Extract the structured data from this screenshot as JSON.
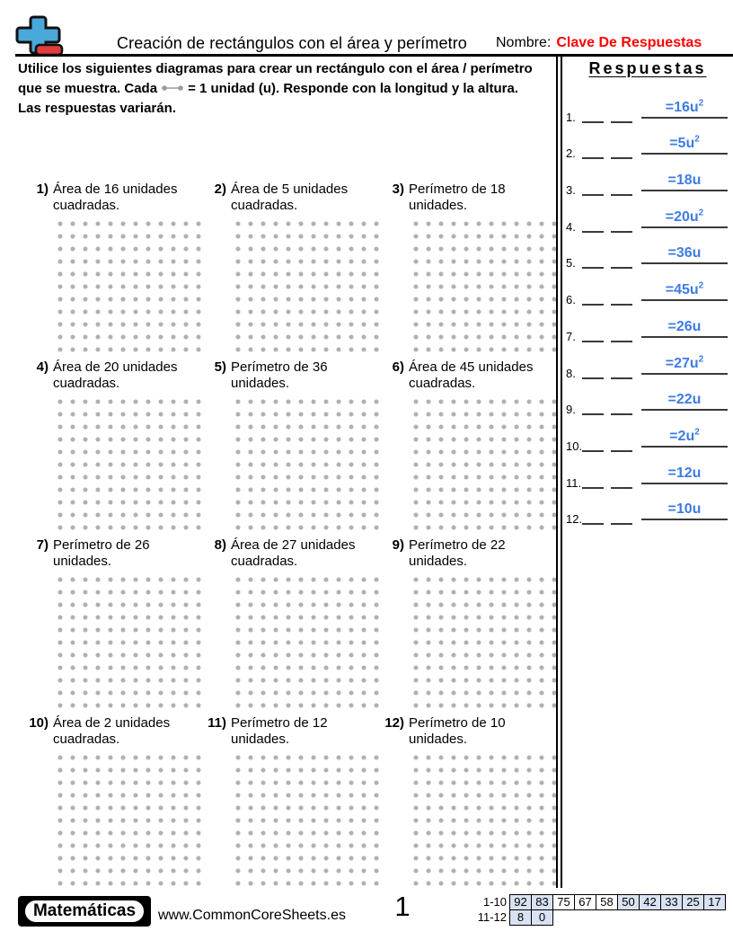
{
  "header": {
    "title": "Creación de rectángulos con el área y perímetro",
    "name_label": "Nombre:",
    "name_value": "Clave De Respuestas"
  },
  "instructions": {
    "line1": "Utilice los siguientes diagramas para crear un rectángulo con el área / perímetro",
    "line2_before_icon": "que se muestra. Cada",
    "line2_after_icon": "= 1 unidad (u). Responde con la longitud y la altura.",
    "line3": "Las respuestas variarán."
  },
  "problems": [
    {
      "num": "1)",
      "text": "Área de 16 unidades cuadradas."
    },
    {
      "num": "2)",
      "text": "Área de 5 unidades cuadradas."
    },
    {
      "num": "3)",
      "text": "Perímetro de 18 unidades."
    },
    {
      "num": "4)",
      "text": "Área de 20 unidades cuadradas."
    },
    {
      "num": "5)",
      "text": "Perímetro de 36 unidades."
    },
    {
      "num": "6)",
      "text": "Área de 45 unidades cuadradas."
    },
    {
      "num": "7)",
      "text": "Perímetro de 26 unidades."
    },
    {
      "num": "8)",
      "text": "Área de 27 unidades cuadradas."
    },
    {
      "num": "9)",
      "text": "Perímetro de 22 unidades."
    },
    {
      "num": "10)",
      "text": "Área de 2 unidades cuadradas."
    },
    {
      "num": "11)",
      "text": "Perímetro de 12 unidades."
    },
    {
      "num": "12)",
      "text": "Perímetro de 10 unidades."
    }
  ],
  "dot_grid": {
    "cols": 12,
    "rows": 11,
    "dot_color": "#b0b0b0"
  },
  "answers_panel": {
    "title": "Respuestas",
    "items": [
      {
        "num": "1.",
        "answer": "=16u",
        "sup": "2"
      },
      {
        "num": "2.",
        "answer": "=5u",
        "sup": "2"
      },
      {
        "num": "3.",
        "answer": "=18u",
        "sup": ""
      },
      {
        "num": "4.",
        "answer": "=20u",
        "sup": "2"
      },
      {
        "num": "5.",
        "answer": "=36u",
        "sup": ""
      },
      {
        "num": "6.",
        "answer": "=45u",
        "sup": "2"
      },
      {
        "num": "7.",
        "answer": "=26u",
        "sup": ""
      },
      {
        "num": "8.",
        "answer": "=27u",
        "sup": "2"
      },
      {
        "num": "9.",
        "answer": "=22u",
        "sup": ""
      },
      {
        "num": "10.",
        "answer": "=2u",
        "sup": "2"
      },
      {
        "num": "11.",
        "answer": "=12u",
        "sup": ""
      },
      {
        "num": "12.",
        "answer": "=10u",
        "sup": ""
      }
    ]
  },
  "footer": {
    "badge": "Matemáticas",
    "website": "www.CommonCoreSheets.es",
    "page_number": "1",
    "score_table": {
      "row1_label": "1-10",
      "row1_cells": [
        {
          "v": "92",
          "hl": true
        },
        {
          "v": "83",
          "hl": true
        },
        {
          "v": "75",
          "hl": false
        },
        {
          "v": "67",
          "hl": false
        },
        {
          "v": "58",
          "hl": false
        },
        {
          "v": "50",
          "hl": true
        },
        {
          "v": "42",
          "hl": true
        },
        {
          "v": "33",
          "hl": true
        },
        {
          "v": "25",
          "hl": true
        },
        {
          "v": "17",
          "hl": true
        }
      ],
      "row2_label": "11-12",
      "row2_cells": [
        {
          "v": "8",
          "hl": true
        },
        {
          "v": "0",
          "hl": true
        }
      ],
      "highlight_color": "#d9e2f2"
    }
  },
  "colors": {
    "answer_blue": "#3d7ce2",
    "answer_key_red": "#ff0000",
    "dot_gray": "#b0b0b0"
  }
}
